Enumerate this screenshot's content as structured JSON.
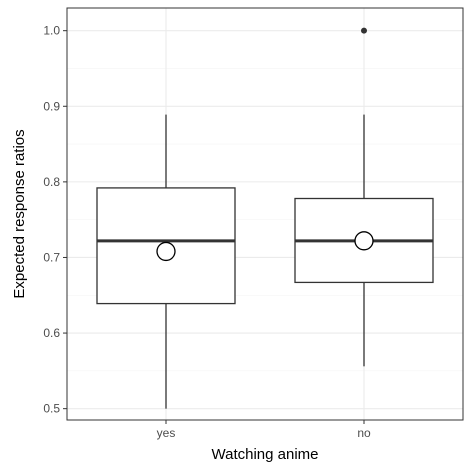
{
  "chart_data": {
    "type": "boxplot",
    "title": "",
    "xlabel": "Watching anime",
    "ylabel": "Expected response ratios",
    "ylim": [
      0.485,
      1.03
    ],
    "yticks": [
      0.5,
      0.6,
      0.7,
      0.8,
      0.9,
      1.0
    ],
    "ytick_labels": [
      "0.5",
      "0.6",
      "0.7",
      "0.8",
      "0.9",
      "1.0"
    ],
    "grid": true,
    "legend": "none",
    "categories": [
      "yes",
      "no"
    ],
    "boxes": [
      {
        "category": "yes",
        "whisker_low": 0.5,
        "q1": 0.639,
        "median": 0.722,
        "q3": 0.792,
        "whisker_high": 0.889,
        "mean": 0.708,
        "outliers": []
      },
      {
        "category": "no",
        "whisker_low": 0.556,
        "q1": 0.667,
        "median": 0.722,
        "q3": 0.778,
        "whisker_high": 0.889,
        "mean": 0.722,
        "outliers": [
          1.0
        ]
      }
    ],
    "colors": {
      "box_fill": "#ffffff",
      "box_stroke": "#333333",
      "median_stroke": "#333333",
      "mean_fill": "#ffffff",
      "mean_stroke": "#000000",
      "outlier": "#333333",
      "grid_major": "#ebebeb",
      "grid_minor": "#f5f5f5",
      "panel_border": "#333333"
    }
  }
}
